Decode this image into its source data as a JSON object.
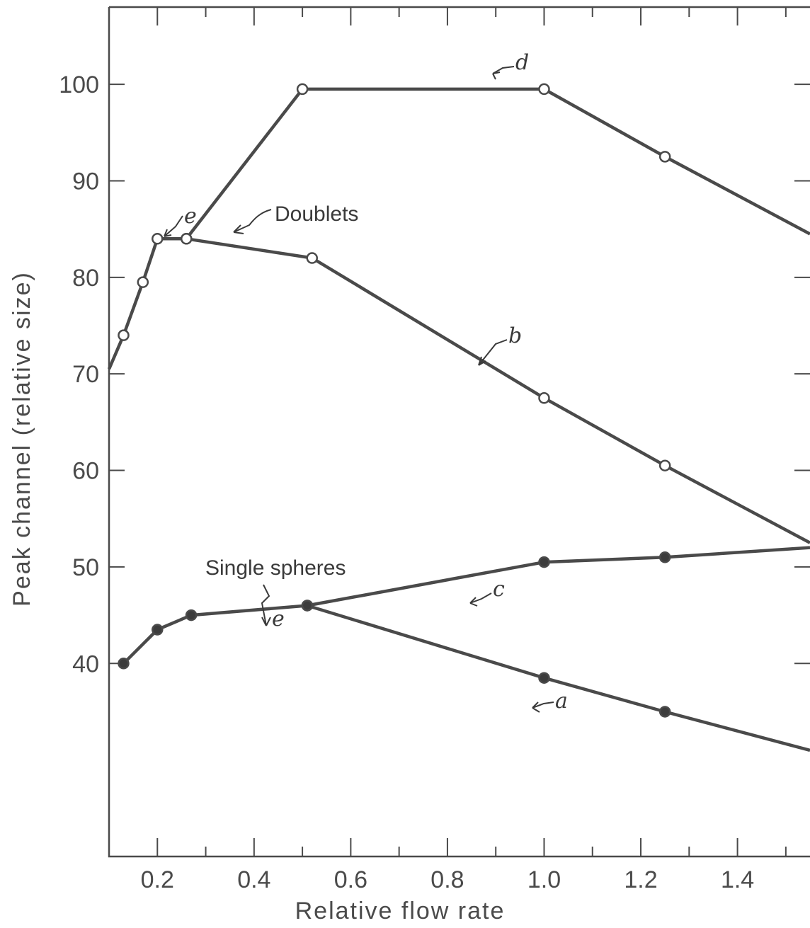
{
  "chart_data": {
    "type": "line",
    "title": "",
    "xlabel": "Relative flow rate",
    "ylabel": "Peak channel (relative size)",
    "xlim": [
      0.1,
      1.55
    ],
    "ylim": [
      20,
      108
    ],
    "x_ticks": [
      0.2,
      0.4,
      0.6,
      0.8,
      1.0,
      1.2,
      1.4
    ],
    "x_tick_labels": [
      "0.2",
      "0.4",
      "0.6",
      "0.8",
      "1.0",
      "1.2",
      "1.4"
    ],
    "y_ticks": [
      40,
      50,
      60,
      70,
      80,
      90,
      100
    ],
    "y_tick_labels": [
      "40",
      "50",
      "60",
      "70",
      "80",
      "90",
      "100"
    ],
    "grid": false,
    "legend": "none",
    "series": [
      {
        "name": "d",
        "marker": "open",
        "x": [
          0.1,
          0.13,
          0.17,
          0.2,
          0.26,
          0.5,
          1.0,
          1.25,
          1.55
        ],
        "y": [
          70.5,
          74,
          79.5,
          84,
          84,
          99.5,
          99.5,
          92.5,
          84.5
        ]
      },
      {
        "name": "b",
        "marker": "open",
        "x": [
          0.26,
          0.52,
          1.0,
          1.25,
          1.55
        ],
        "y": [
          84,
          82,
          67.5,
          60.5,
          52.5
        ]
      },
      {
        "name": "c",
        "marker": "filled",
        "x": [
          0.13,
          0.2,
          0.27,
          0.51,
          1.0,
          1.25,
          1.55
        ],
        "y": [
          40,
          43.5,
          45,
          46,
          50.5,
          51,
          52
        ]
      },
      {
        "name": "a",
        "marker": "filled",
        "x": [
          0.51,
          1.0,
          1.25,
          1.55
        ],
        "y": [
          46,
          38.5,
          35,
          31
        ]
      }
    ],
    "annotations": {
      "doublets": "Doublets",
      "single_spheres": "Single spheres",
      "label_a": "a",
      "label_b": "b",
      "label_c": "c",
      "label_d": "d",
      "label_e_top": "e",
      "label_e_bottom": "e"
    },
    "colors": {
      "line": "#4a4a4a",
      "marker_fill_open": "#ffffff",
      "marker_fill_filled": "#3c3c3c"
    }
  }
}
